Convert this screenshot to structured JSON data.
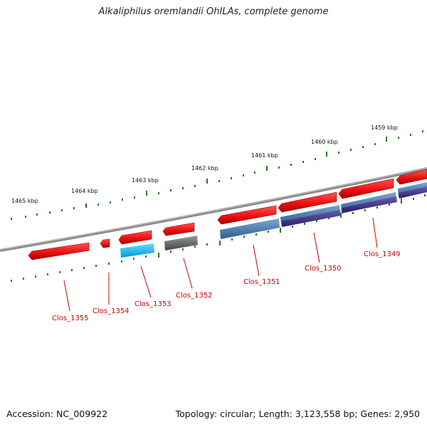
{
  "title": "Alkaliphilus oremlandii OhILAs, complete genome",
  "footer": {
    "accession": "Accession: NC_009922",
    "summary": "Topology: circular; Length: 3,123,558 bp; Genes: 2,950"
  },
  "ticks": [
    "1465 kbp",
    "1464 kbp",
    "1463 kbp",
    "1462 kbp",
    "1461 kbp",
    "1460 kbp",
    "1459 kbp"
  ],
  "genes": [
    "Clos_1355",
    "Clos_1354",
    "Clos_1353",
    "Clos_1352",
    "Clos_1351",
    "Clos_1350",
    "Clos_1349"
  ],
  "colors": {
    "cds": "#ee1111",
    "cyan_feature": "#11bbee",
    "gray_feature": "#666666",
    "steel_feature": "#4a7fb0",
    "purple_feature": "#4a3a8c",
    "backbone": "#8a8a8a",
    "tick_green": "#1a7a1a",
    "label": "#cc0000"
  }
}
